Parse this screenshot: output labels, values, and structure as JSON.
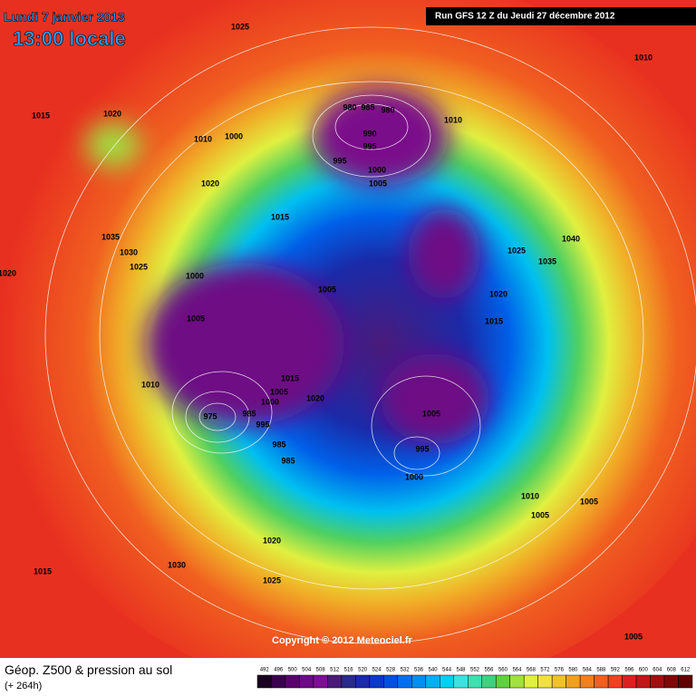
{
  "header": {
    "date": "Lundi 7 janvier 2013",
    "time": "13:00 locale",
    "run": "Run GFS 12 Z du Jeudi 27 décembre 2012"
  },
  "isobar_labels": [
    "1025",
    "1010",
    "1015",
    "1020",
    "1010",
    "1000",
    "980",
    "985",
    "980",
    "990",
    "995",
    "995",
    "1000",
    "1005",
    "1010",
    "1020",
    "1015",
    "1035",
    "1030",
    "1025",
    "1020",
    "1000",
    "1005",
    "1025",
    "1040",
    "1035",
    "1020",
    "1015",
    "1005",
    "1010",
    "1015",
    "1005",
    "1000",
    "1020",
    "975",
    "985",
    "995",
    "985",
    "985",
    "1005",
    "995",
    "1000",
    "1010",
    "1005",
    "1005",
    "1020",
    "1030",
    "1015",
    "1025",
    "1005"
  ],
  "copyright": "Copyright © 2012 Meteociel.fr",
  "footer": {
    "title": "Géop. Z500 & pression au sol",
    "lead": "(+ 264h)"
  },
  "scale": {
    "values": [
      492,
      496,
      500,
      504,
      508,
      512,
      516,
      520,
      524,
      528,
      532,
      536,
      540,
      544,
      548,
      552,
      556,
      560,
      564,
      568,
      572,
      576,
      580,
      584,
      588,
      592,
      596,
      600,
      604,
      608,
      612
    ],
    "colors": [
      "#1a0020",
      "#3a0050",
      "#5a006e",
      "#6e0a84",
      "#800e94",
      "#4a1a7a",
      "#2a2a8a",
      "#1a2aa8",
      "#0a3ac8",
      "#0050e0",
      "#0070f0",
      "#0090f0",
      "#00b0f0",
      "#00d0f0",
      "#40e0e0",
      "#40e0b0",
      "#40d080",
      "#60d040",
      "#a0e040",
      "#e0f040",
      "#f0e040",
      "#f0c030",
      "#f0a020",
      "#f08020",
      "#f06020",
      "#f04020",
      "#e02020",
      "#c01818",
      "#a01010",
      "#800808",
      "#600000"
    ]
  }
}
